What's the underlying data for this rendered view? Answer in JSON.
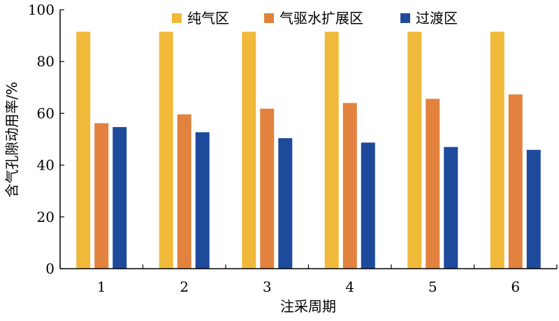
{
  "chart_data": {
    "type": "bar",
    "categories": [
      "1",
      "2",
      "3",
      "4",
      "5",
      "6"
    ],
    "series": [
      {
        "name": "纯气区",
        "color": "#F0B93A",
        "values": [
          91.5,
          91.5,
          91.5,
          91.5,
          91.5,
          91.5
        ]
      },
      {
        "name": "气驱水扩展区",
        "color": "#E2823E",
        "values": [
          56.2,
          59.6,
          61.8,
          64.0,
          65.6,
          67.3
        ]
      },
      {
        "name": "过渡区",
        "color": "#1E4A9C",
        "values": [
          54.7,
          52.7,
          50.4,
          48.7,
          47.0,
          45.9
        ]
      }
    ],
    "xlabel": "注采周期",
    "ylabel": "含气孔隙动用率/%",
    "ylim": [
      0,
      100
    ],
    "yticks": [
      0,
      20,
      40,
      60,
      80,
      100
    ],
    "grid": false,
    "legend": "top-right"
  }
}
